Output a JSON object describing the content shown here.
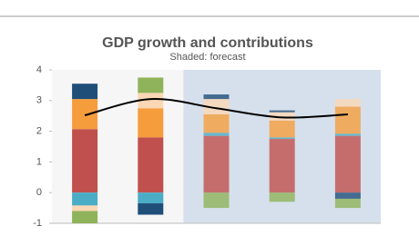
{
  "chart_data": {
    "type": "bar",
    "stacked": true,
    "title": "GDP growth and contributions",
    "subtitle": "Shaded: forecast",
    "categories": [
      null,
      null,
      null,
      null,
      null
    ],
    "forecast_from": 2,
    "ylim": [
      -1,
      4
    ],
    "yticks": [
      -1,
      0,
      1,
      2,
      3,
      4
    ],
    "grid": false,
    "series": [
      {
        "color": "#c0504d",
        "values": [
          2.07,
          1.8,
          1.85,
          1.75,
          1.85
        ]
      },
      {
        "color": "#4bacc6",
        "values": [
          -0.42,
          -0.35,
          0.1,
          0.05,
          0.07
        ]
      },
      {
        "color": "#f59d3d",
        "values": [
          0.98,
          0.95,
          0.6,
          0.55,
          0.88
        ]
      },
      {
        "color": "#fad7b5",
        "values": [
          -0.18,
          0.5,
          0.5,
          0.27,
          0.25
        ]
      },
      {
        "color": "#1f4e79",
        "values": [
          0.5,
          -0.37,
          0.15,
          0.06,
          -0.2
        ]
      },
      {
        "color": "#8fb35a",
        "values": [
          -0.4,
          0.5,
          -0.5,
          -0.3,
          -0.3
        ]
      },
      {
        "type": "line",
        "color": "#000000",
        "values": [
          2.52,
          3.05,
          2.75,
          2.45,
          2.55
        ]
      }
    ]
  }
}
